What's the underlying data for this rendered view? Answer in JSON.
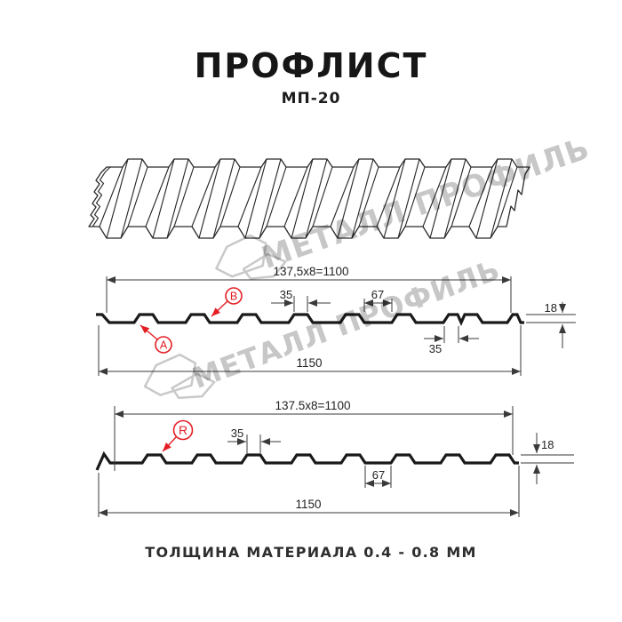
{
  "header": {
    "title": "ПРОФЛИСТ",
    "subtitle": "МП-20"
  },
  "watermark": {
    "brand": "МЕТАЛЛ ПРОФИЛЬ"
  },
  "sections": {
    "top": {
      "dim_modules": "137,5x8=1100",
      "dim_total_width": "1150",
      "dim_rib_width": "35",
      "dim_valley_width": "67",
      "dim_height": "18",
      "dim_overlap_rib": "35",
      "point_a": "A",
      "point_b": "B"
    },
    "bottom": {
      "dim_modules": "137.5x8=1100",
      "dim_total_width": "1150",
      "dim_rib_width": "35",
      "dim_valley_width": "67",
      "dim_height": "18",
      "point_r": "R"
    }
  },
  "footer": {
    "note": "ТОЛЩИНА МАТЕРИАЛА 0.4 - 0.8 ММ"
  },
  "colors": {
    "accent": "#e31e24",
    "line": "#1a1a1a",
    "dimension": "#3a3a3a",
    "watermark": "#c7c7c7"
  }
}
